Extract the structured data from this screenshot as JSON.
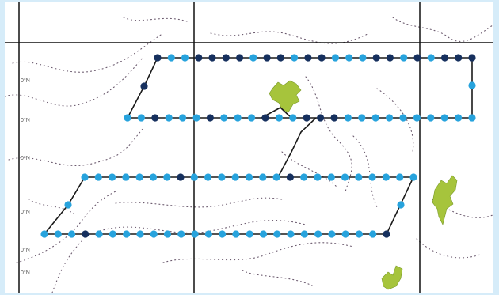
{
  "map": {
    "background": "#ffffff",
    "frame_color": "#d6ecf9",
    "grid_color": "#111111",
    "contour_color": "#6b5a6e",
    "island_color": "#a6c43c",
    "track_color": "#1a1a1a"
  },
  "survey": {
    "station_colors": {
      "light": "#27a3dd",
      "dark": "#16305e"
    }
  },
  "margin_labels": {
    "left": [
      "0°N",
      "0°N",
      "0°N",
      "0°N",
      "0°N",
      "0°N"
    ]
  }
}
